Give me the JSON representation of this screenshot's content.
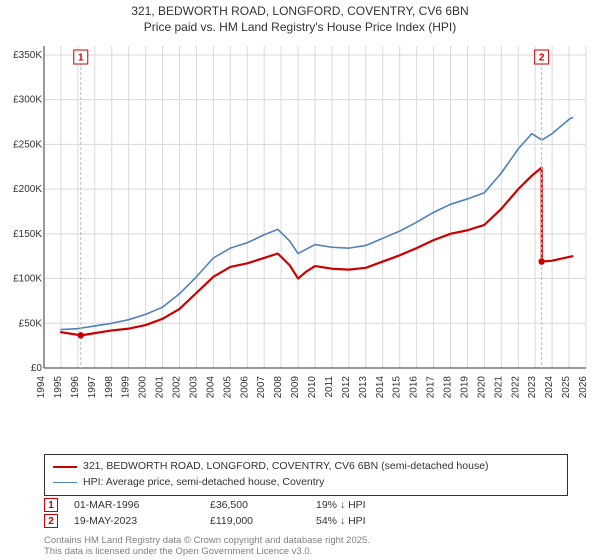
{
  "title": {
    "line1": "321, BEDWORTH ROAD, LONGFORD, COVENTRY, CV6 6BN",
    "line2": "Price paid vs. HM Land Registry's House Price Index (HPI)",
    "fontsize": 12,
    "color": "#333333"
  },
  "chart": {
    "type": "line",
    "background_color": "#ffffff",
    "grid_color": "#d9d9d9",
    "grid_stroke": 1,
    "axis_color": "#333333",
    "font_color": "#333333",
    "label_fontsize": 10,
    "x": {
      "min": 1994,
      "max": 2026,
      "ticks": [
        1994,
        1995,
        1996,
        1997,
        1998,
        1999,
        2000,
        2001,
        2002,
        2003,
        2004,
        2005,
        2006,
        2007,
        2008,
        2009,
        2010,
        2011,
        2012,
        2013,
        2014,
        2015,
        2016,
        2017,
        2018,
        2019,
        2020,
        2021,
        2022,
        2023,
        2024,
        2025,
        2026
      ]
    },
    "y": {
      "min": 0,
      "max": 360000,
      "ticks": [
        0,
        50000,
        100000,
        150000,
        200000,
        250000,
        300000,
        350000
      ],
      "tick_labels": [
        "£0",
        "£50K",
        "£100K",
        "£150K",
        "£200K",
        "£250K",
        "£300K",
        "£350K"
      ]
    },
    "series": [
      {
        "id": "property",
        "label": "321, BEDWORTH ROAD, LONGFORD, COVENTRY, CV6 6BN (semi-detached house)",
        "color": "#cc0000",
        "stroke_width": 2.2,
        "data": [
          [
            1995.0,
            40000
          ],
          [
            1996.2,
            36500
          ],
          [
            1997.0,
            39000
          ],
          [
            1998.0,
            42000
          ],
          [
            1999.0,
            44000
          ],
          [
            2000.0,
            48000
          ],
          [
            2001.0,
            55000
          ],
          [
            2002.0,
            66000
          ],
          [
            2003.0,
            84000
          ],
          [
            2004.0,
            102000
          ],
          [
            2005.0,
            113000
          ],
          [
            2006.0,
            117000
          ],
          [
            2007.0,
            123000
          ],
          [
            2007.8,
            128000
          ],
          [
            2008.5,
            115000
          ],
          [
            2009.0,
            100000
          ],
          [
            2009.5,
            108000
          ],
          [
            2010.0,
            114000
          ],
          [
            2011.0,
            111000
          ],
          [
            2012.0,
            110000
          ],
          [
            2013.0,
            112000
          ],
          [
            2014.0,
            119000
          ],
          [
            2015.0,
            126000
          ],
          [
            2016.0,
            134000
          ],
          [
            2017.0,
            143000
          ],
          [
            2018.0,
            150000
          ],
          [
            2019.0,
            154000
          ],
          [
            2020.0,
            160000
          ],
          [
            2021.0,
            178000
          ],
          [
            2022.0,
            200000
          ],
          [
            2022.8,
            215000
          ],
          [
            2023.38,
            224000
          ],
          [
            2023.39,
            119000
          ],
          [
            2024.0,
            120000
          ],
          [
            2025.2,
            125000
          ]
        ]
      },
      {
        "id": "hpi",
        "label": "HPI: Average price, semi-detached house, Coventry",
        "color": "#4f81bd",
        "stroke_width": 1.6,
        "data": [
          [
            1995.0,
            43000
          ],
          [
            1996.0,
            44000
          ],
          [
            1997.0,
            47000
          ],
          [
            1998.0,
            50000
          ],
          [
            1999.0,
            54000
          ],
          [
            2000.0,
            60000
          ],
          [
            2001.0,
            68000
          ],
          [
            2002.0,
            83000
          ],
          [
            2003.0,
            102000
          ],
          [
            2004.0,
            123000
          ],
          [
            2005.0,
            134000
          ],
          [
            2006.0,
            140000
          ],
          [
            2007.0,
            149000
          ],
          [
            2007.8,
            155000
          ],
          [
            2008.5,
            142000
          ],
          [
            2009.0,
            128000
          ],
          [
            2009.5,
            133000
          ],
          [
            2010.0,
            138000
          ],
          [
            2011.0,
            135000
          ],
          [
            2012.0,
            134000
          ],
          [
            2013.0,
            137000
          ],
          [
            2014.0,
            145000
          ],
          [
            2015.0,
            153000
          ],
          [
            2016.0,
            163000
          ],
          [
            2017.0,
            174000
          ],
          [
            2018.0,
            183000
          ],
          [
            2019.0,
            189000
          ],
          [
            2020.0,
            196000
          ],
          [
            2021.0,
            218000
          ],
          [
            2022.0,
            245000
          ],
          [
            2022.8,
            262000
          ],
          [
            2023.4,
            255000
          ],
          [
            2024.0,
            262000
          ],
          [
            2025.0,
            278000
          ],
          [
            2025.2,
            280000
          ]
        ]
      }
    ],
    "sale_markers": [
      {
        "n": "1",
        "x": 1996.17,
        "y_top": 0.98,
        "color": "#cc0000",
        "point_y": 36500
      },
      {
        "n": "2",
        "x": 2023.38,
        "y_top": 0.98,
        "color": "#cc0000",
        "point_y": 119000
      }
    ],
    "marker_box": {
      "border_width": 1,
      "size": 14,
      "fontsize": 10
    },
    "sale_point": {
      "radius": 3.2,
      "fill": "#cc0000"
    }
  },
  "legend": {
    "border_color": "#333333",
    "fontsize": 10.5,
    "items": [
      {
        "series": "property",
        "swatch_color": "#cc0000",
        "swatch_width": 2.5
      },
      {
        "series": "hpi",
        "swatch_color": "#4f81bd",
        "swatch_width": 1.8
      }
    ]
  },
  "sales": [
    {
      "n": "1",
      "color": "#cc0000",
      "date": "01-MAR-1996",
      "price": "£36,500",
      "diff": "19% ↓ HPI"
    },
    {
      "n": "2",
      "color": "#cc0000",
      "date": "19-MAY-2023",
      "price": "£119,000",
      "diff": "54% ↓ HPI"
    }
  ],
  "footer": {
    "line1": "Contains HM Land Registry data © Crown copyright and database right 2025.",
    "line2": "This data is licensed under the Open Government Licence v3.0.",
    "color": "#808080",
    "fontsize": 9.5
  }
}
